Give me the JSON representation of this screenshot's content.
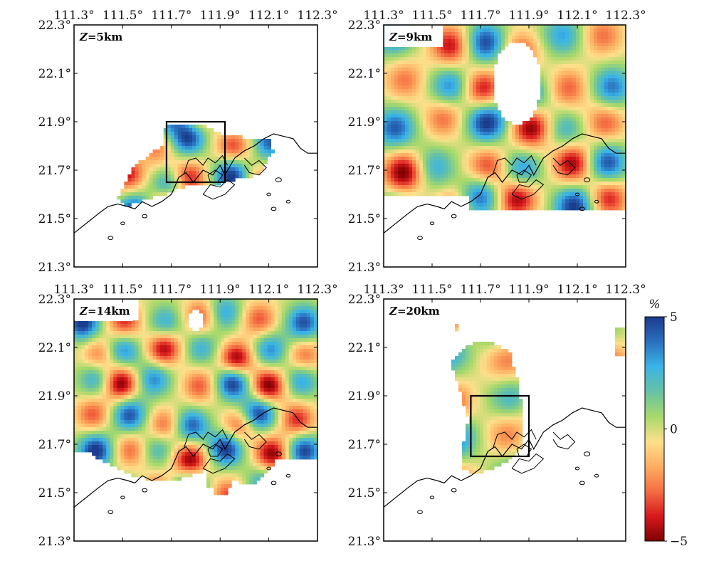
{
  "chart_data": {
    "type": "heatmap",
    "colorbar": {
      "unit": "%",
      "min": -5,
      "max": 5,
      "ticks": [
        {
          "value": 5,
          "label": "5"
        },
        {
          "value": 0,
          "label": "0"
        },
        {
          "value": -5,
          "label": "−5"
        }
      ],
      "colors": [
        "#7f0000",
        "#d7191c",
        "#f46d43",
        "#fdae61",
        "#fee08b",
        "#a6d96a",
        "#66c2a5",
        "#3ab4e6",
        "#2b6fbf",
        "#1a3c8c"
      ]
    },
    "x_ticks": [
      {
        "value": 111.3,
        "label": "111.3°"
      },
      {
        "value": 111.5,
        "label": "111.5°"
      },
      {
        "value": 111.7,
        "label": "111.7°"
      },
      {
        "value": 111.9,
        "label": "111.9°"
      },
      {
        "value": 112.1,
        "label": "112.1°"
      },
      {
        "value": 112.3,
        "label": "112.3°"
      }
    ],
    "y_ticks": [
      {
        "value": 22.3,
        "label": "22.3°"
      },
      {
        "value": 22.1,
        "label": "22.1°"
      },
      {
        "value": 21.9,
        "label": "21.9°"
      },
      {
        "value": 21.7,
        "label": "21.7°"
      },
      {
        "value": 21.5,
        "label": "21.5°"
      },
      {
        "value": 21.3,
        "label": "21.3°"
      }
    ],
    "xlim": [
      111.3,
      112.3
    ],
    "ylim": [
      21.3,
      22.3
    ],
    "panels": [
      {
        "name": "panel-z5",
        "label_var": "Z",
        "label_value": "=5km",
        "box": {
          "lon": [
            111.68,
            111.92
          ],
          "lat": [
            21.65,
            21.9
          ]
        }
      },
      {
        "name": "panel-z9",
        "label_var": "Z",
        "label_value": "=9km",
        "box": null
      },
      {
        "name": "panel-z14",
        "label_var": "Z",
        "label_value": "=14km",
        "box": null
      },
      {
        "name": "panel-z20",
        "label_var": "Z",
        "label_value": "=20km",
        "box": {
          "lon": [
            111.66,
            111.9
          ],
          "lat": [
            21.65,
            21.9
          ]
        }
      }
    ]
  }
}
